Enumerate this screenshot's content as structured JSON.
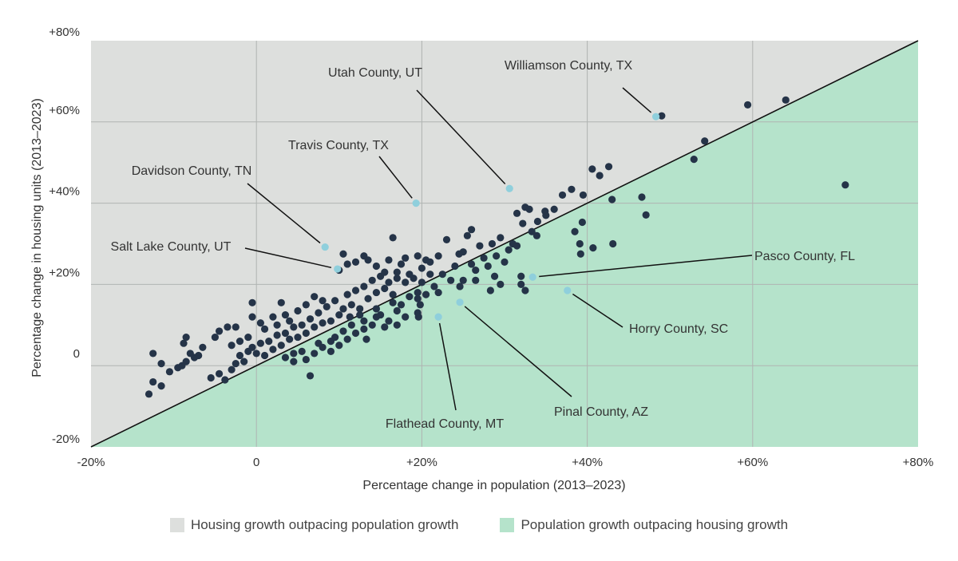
{
  "colors": {
    "housing_region": "#dddfdd",
    "population_region": "#b5e3cb",
    "point": "#253448",
    "highlight": "#8fcfdc",
    "diagonal": "#111111",
    "grid": "#b0b4b2"
  },
  "chart_data": {
    "type": "scatter",
    "xlabel": "Percentage change in population (2013–2023)",
    "ylabel": "Percentage change in housing units (2013–2023)",
    "xlim": [
      -20,
      80
    ],
    "ylim": [
      -20,
      80
    ],
    "x_ticks": [
      {
        "value": -20,
        "label": "-20%"
      },
      {
        "value": 0,
        "label": "0"
      },
      {
        "value": 20,
        "label": "+20%"
      },
      {
        "value": 40,
        "label": "+40%"
      },
      {
        "value": 60,
        "label": "+60%"
      },
      {
        "value": 80,
        "label": "+80%"
      }
    ],
    "y_ticks": [
      {
        "value": -20,
        "label": "-20%"
      },
      {
        "value": 0,
        "label": "0"
      },
      {
        "value": 20,
        "label": "+20%"
      },
      {
        "value": 40,
        "label": "+40%"
      },
      {
        "value": 60,
        "label": "+60%"
      },
      {
        "value": 80,
        "label": "+80%"
      }
    ],
    "grid": true,
    "reference_line": "y = x",
    "legend_position": "bottom",
    "legend": [
      {
        "label": "Housing growth outpacing population growth",
        "color": "#dddfdd"
      },
      {
        "label": "Population growth outpacing housing growth",
        "color": "#b5e3cb"
      }
    ],
    "highlighted": [
      {
        "label": "Williamson County, TX",
        "x": 48.3,
        "y": 61.3
      },
      {
        "label": "Utah County, UT",
        "x": 30.6,
        "y": 43.6
      },
      {
        "label": "Travis County, TX",
        "x": 19.3,
        "y": 40.0
      },
      {
        "label": "Davidson County, TN",
        "x": 8.3,
        "y": 29.2
      },
      {
        "label": "Salt Lake County, UT",
        "x": 9.8,
        "y": 23.8
      },
      {
        "label": "Pasco County, FL",
        "x": 33.4,
        "y": 21.8
      },
      {
        "label": "Horry County, SC",
        "x": 37.6,
        "y": 18.5
      },
      {
        "label": "Pinal County, AZ",
        "x": 24.6,
        "y": 15.6
      },
      {
        "label": "Flathead County, MT",
        "x": 22.0,
        "y": 12.0
      }
    ],
    "points": [
      [
        49.0,
        61.5
      ],
      [
        59.4,
        64.2
      ],
      [
        64.0,
        65.4
      ],
      [
        54.2,
        55.3
      ],
      [
        52.9,
        50.8
      ],
      [
        71.2,
        44.5
      ],
      [
        46.6,
        41.5
      ],
      [
        47.1,
        37.1
      ],
      [
        43.0,
        40.9
      ],
      [
        43.1,
        30.0
      ],
      [
        40.7,
        29.0
      ],
      [
        42.6,
        49.0
      ],
      [
        40.6,
        48.4
      ],
      [
        41.5,
        46.8
      ],
      [
        38.1,
        43.4
      ],
      [
        37.0,
        42.0
      ],
      [
        39.5,
        42.0
      ],
      [
        35.0,
        37.0
      ],
      [
        38.5,
        33.0
      ],
      [
        39.4,
        35.3
      ],
      [
        39.1,
        30.0
      ],
      [
        39.2,
        27.5
      ],
      [
        33.9,
        32.0
      ],
      [
        34.9,
        38.0
      ],
      [
        33.0,
        38.5
      ],
      [
        32.5,
        39.0
      ],
      [
        31.5,
        37.5
      ],
      [
        32.2,
        35.0
      ],
      [
        33.3,
        33.0
      ],
      [
        31.0,
        30.0
      ],
      [
        29.5,
        31.5
      ],
      [
        28.5,
        30.0
      ],
      [
        27.0,
        29.5
      ],
      [
        26.0,
        33.5
      ],
      [
        25.5,
        32.0
      ],
      [
        25.0,
        28.0
      ],
      [
        24.5,
        27.5
      ],
      [
        23.0,
        31.0
      ],
      [
        22.0,
        27.0
      ],
      [
        20.5,
        26.0
      ],
      [
        21.0,
        25.5
      ],
      [
        20.0,
        24.0
      ],
      [
        19.5,
        27.0
      ],
      [
        18.0,
        26.5
      ],
      [
        17.5,
        25.0
      ],
      [
        17.0,
        21.5
      ],
      [
        16.5,
        31.5
      ],
      [
        16.0,
        26.0
      ],
      [
        15.5,
        23.0
      ],
      [
        14.5,
        24.5
      ],
      [
        13.5,
        26.0
      ],
      [
        13.0,
        27.0
      ],
      [
        12.0,
        25.5
      ],
      [
        11.0,
        25.0
      ],
      [
        10.5,
        27.5
      ],
      [
        10.0,
        23.5
      ],
      [
        32.0,
        22.0
      ],
      [
        32.0,
        20.0
      ],
      [
        32.5,
        18.5
      ],
      [
        29.5,
        20.0
      ],
      [
        28.8,
        22.0
      ],
      [
        28.3,
        18.5
      ],
      [
        26.5,
        21.0
      ],
      [
        26.5,
        23.5
      ],
      [
        25.0,
        21.0
      ],
      [
        24.6,
        19.5
      ],
      [
        21.0,
        22.5
      ],
      [
        19.5,
        18.0
      ],
      [
        19.5,
        16.5
      ],
      [
        19.8,
        15.0
      ],
      [
        19.5,
        13.0
      ],
      [
        19.6,
        12.0
      ],
      [
        17.5,
        15.0
      ],
      [
        17.0,
        13.5
      ],
      [
        15.5,
        9.5
      ],
      [
        14.5,
        12.0
      ],
      [
        13.3,
        6.5
      ],
      [
        13.0,
        11.0
      ],
      [
        11.3,
        12.0
      ],
      [
        10.5,
        8.5
      ],
      [
        9.0,
        6.0
      ],
      [
        6.5,
        -2.5
      ],
      [
        4.5,
        1.0
      ],
      [
        3.5,
        2.0
      ],
      [
        -0.5,
        12.0
      ],
      [
        -0.5,
        15.5
      ],
      [
        -2.5,
        9.5
      ],
      [
        -3.5,
        9.5
      ],
      [
        -4.5,
        8.5
      ],
      [
        -5.0,
        7.0
      ],
      [
        -6.5,
        4.5
      ],
      [
        -7.0,
        2.5
      ],
      [
        -7.5,
        2.0
      ],
      [
        -8.0,
        3.0
      ],
      [
        -8.5,
        1.0
      ],
      [
        -9.0,
        0.0
      ],
      [
        -9.5,
        -0.5
      ],
      [
        -10.5,
        -1.5
      ],
      [
        -11.5,
        -5.0
      ],
      [
        -12.5,
        -4.0
      ],
      [
        -12.5,
        3.0
      ],
      [
        -13.0,
        -7.0
      ],
      [
        -11.5,
        0.5
      ],
      [
        -8.5,
        7.0
      ],
      [
        -8.8,
        5.5
      ],
      [
        -5.5,
        -3.0
      ],
      [
        -4.5,
        -2.0
      ],
      [
        -3.8,
        -3.5
      ],
      [
        -3.0,
        -1.0
      ],
      [
        -2.5,
        0.5
      ],
      [
        -2.0,
        2.5
      ],
      [
        -1.5,
        1.0
      ],
      [
        -1.0,
        3.5
      ],
      [
        -0.5,
        4.5
      ],
      [
        0.0,
        3.0
      ],
      [
        0.5,
        5.5
      ],
      [
        1.0,
        2.5
      ],
      [
        1.5,
        6.0
      ],
      [
        2.0,
        4.0
      ],
      [
        2.5,
        7.5
      ],
      [
        3.0,
        5.0
      ],
      [
        3.5,
        8.0
      ],
      [
        4.0,
        6.5
      ],
      [
        4.5,
        9.5
      ],
      [
        5.0,
        7.0
      ],
      [
        5.5,
        10.0
      ],
      [
        6.0,
        8.0
      ],
      [
        6.5,
        11.5
      ],
      [
        7.0,
        9.5
      ],
      [
        7.5,
        13.0
      ],
      [
        8.0,
        10.5
      ],
      [
        8.5,
        14.5
      ],
      [
        9.0,
        11.0
      ],
      [
        9.5,
        16.0
      ],
      [
        10.0,
        12.5
      ],
      [
        10.5,
        14.0
      ],
      [
        11.0,
        17.5
      ],
      [
        11.5,
        15.0
      ],
      [
        12.0,
        18.5
      ],
      [
        12.5,
        14.0
      ],
      [
        13.0,
        19.5
      ],
      [
        13.5,
        16.5
      ],
      [
        14.0,
        21.0
      ],
      [
        14.5,
        18.0
      ],
      [
        15.0,
        22.0
      ],
      [
        15.5,
        19.0
      ],
      [
        16.0,
        20.5
      ],
      [
        16.5,
        17.5
      ],
      [
        17.0,
        23.0
      ],
      [
        18.0,
        20.5
      ],
      [
        18.5,
        22.5
      ],
      [
        19.0,
        21.5
      ],
      [
        20.0,
        20.5
      ],
      [
        21.5,
        19.5
      ],
      [
        22.5,
        22.5
      ],
      [
        23.5,
        21.0
      ],
      [
        24.0,
        24.5
      ],
      [
        26.0,
        25.0
      ],
      [
        27.5,
        26.5
      ],
      [
        28.0,
        24.5
      ],
      [
        29.0,
        27.0
      ],
      [
        30.0,
        25.5
      ],
      [
        30.5,
        28.5
      ],
      [
        31.5,
        29.5
      ],
      [
        34.0,
        35.5
      ],
      [
        36.0,
        38.5
      ],
      [
        2.0,
        12.0
      ],
      [
        3.0,
        15.5
      ],
      [
        4.0,
        11.0
      ],
      [
        5.0,
        13.5
      ],
      [
        6.0,
        15.0
      ],
      [
        7.0,
        17.0
      ],
      [
        8.0,
        16.0
      ],
      [
        1.0,
        9.0
      ],
      [
        0.5,
        10.5
      ],
      [
        2.5,
        10.0
      ],
      [
        3.5,
        12.5
      ],
      [
        -1.0,
        7.0
      ],
      [
        -2.0,
        6.0
      ],
      [
        -3.0,
        5.0
      ],
      [
        6.0,
        1.5
      ],
      [
        7.0,
        3.0
      ],
      [
        8.0,
        4.5
      ],
      [
        9.0,
        3.5
      ],
      [
        10.0,
        5.0
      ],
      [
        11.0,
        6.5
      ],
      [
        12.0,
        8.0
      ],
      [
        13.0,
        9.0
      ],
      [
        14.0,
        10.0
      ],
      [
        15.0,
        12.5
      ],
      [
        16.0,
        11.0
      ],
      [
        17.0,
        10.0
      ],
      [
        18.0,
        12.0
      ],
      [
        5.5,
        3.5
      ],
      [
        4.5,
        3.0
      ],
      [
        7.5,
        5.5
      ],
      [
        9.5,
        7.0
      ],
      [
        11.5,
        10.0
      ],
      [
        12.5,
        12.5
      ],
      [
        14.5,
        14.0
      ],
      [
        16.5,
        15.5
      ],
      [
        18.5,
        17.0
      ],
      [
        20.5,
        17.5
      ],
      [
        22.0,
        18.0
      ]
    ]
  }
}
